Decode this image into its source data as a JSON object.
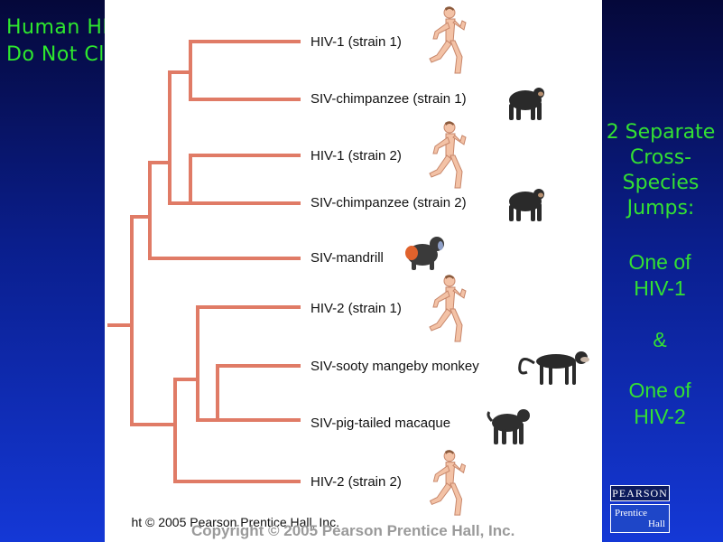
{
  "title": {
    "line1": "Human HIVs",
    "line2": "Do Not Cluster"
  },
  "leaves": [
    {
      "label": "HIV-1 (strain 1)",
      "icon": "human-runner-icon"
    },
    {
      "label": "SIV-chimpanzee (strain 1)",
      "icon": "chimpanzee-icon"
    },
    {
      "label": "HIV-1 (strain 2)",
      "icon": "human-runner-icon"
    },
    {
      "label": "SIV-chimpanzee (strain 2)",
      "icon": "chimpanzee-icon"
    },
    {
      "label": "SIV-mandrill",
      "icon": "mandrill-icon"
    },
    {
      "label": "HIV-2 (strain 1)",
      "icon": "human-runner-icon"
    },
    {
      "label": "SIV-sooty mangeby monkey",
      "icon": "sooty-mangabey-icon"
    },
    {
      "label": "SIV-pig-tailed macaque",
      "icon": "macaque-icon"
    },
    {
      "label": "HIV-2 (strain 2)",
      "icon": "human-runner-icon"
    }
  ],
  "copyright_small": "ht © 2005 Pearson Prentice Hall, Inc.",
  "copyright_big": "Copyright © 2005 Pearson Prentice Hall, Inc.",
  "right_panel": {
    "heading_lines": [
      "2 Separate",
      "Cross-",
      "Species",
      "Jumps:"
    ],
    "one_hiv1_lines": [
      "One of",
      "HIV-1"
    ],
    "ampersand": "&",
    "one_hiv2_lines": [
      "One of",
      "HIV-2"
    ]
  },
  "logo": {
    "top": "PEARSON",
    "line1": "Prentice",
    "line2": "Hall"
  },
  "colors": {
    "branch": "#e07b66",
    "green_text": "#33e033",
    "title_green": "#2ee82e"
  }
}
